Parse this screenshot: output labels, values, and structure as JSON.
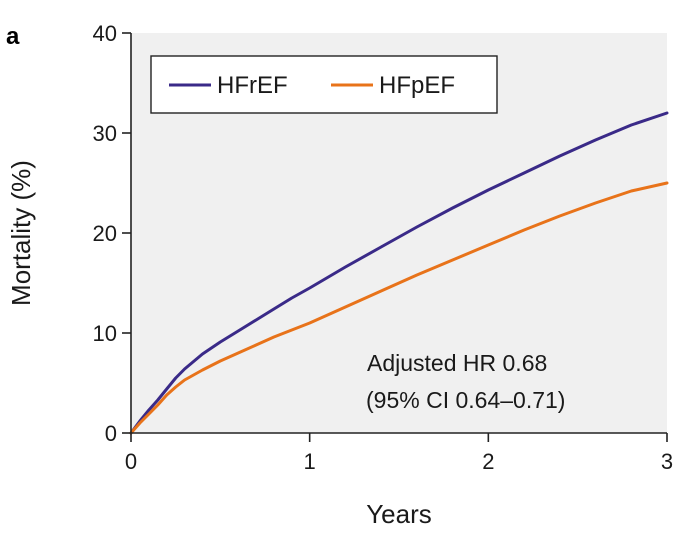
{
  "panel_label": "a",
  "chart_data": {
    "type": "line",
    "title": "",
    "xlabel": "Years",
    "ylabel": "Mortality (%)",
    "xlim": [
      0,
      3
    ],
    "ylim": [
      0,
      40
    ],
    "xticks": [
      0,
      1,
      2,
      3
    ],
    "yticks": [
      0,
      10,
      20,
      30,
      40
    ],
    "grid": false,
    "legend_position": "top-left",
    "annotation": [
      "Adjusted HR 0.68",
      "(95% CI 0.64–0.71)"
    ],
    "series": [
      {
        "name": "HFrEF",
        "color": "#3a2a88",
        "points": [
          [
            0,
            0
          ],
          [
            0.05,
            1.2
          ],
          [
            0.1,
            2.3
          ],
          [
            0.15,
            3.3
          ],
          [
            0.2,
            4.4
          ],
          [
            0.25,
            5.5
          ],
          [
            0.3,
            6.4
          ],
          [
            0.4,
            7.9
          ],
          [
            0.5,
            9.1
          ],
          [
            0.6,
            10.2
          ],
          [
            0.7,
            11.3
          ],
          [
            0.8,
            12.4
          ],
          [
            0.9,
            13.5
          ],
          [
            1.0,
            14.5
          ],
          [
            1.2,
            16.6
          ],
          [
            1.4,
            18.6
          ],
          [
            1.6,
            20.6
          ],
          [
            1.8,
            22.5
          ],
          [
            2.0,
            24.3
          ],
          [
            2.2,
            26.0
          ],
          [
            2.4,
            27.7
          ],
          [
            2.6,
            29.3
          ],
          [
            2.8,
            30.8
          ],
          [
            3.0,
            32.0
          ]
        ]
      },
      {
        "name": "HFpEF",
        "color": "#e8731a",
        "points": [
          [
            0,
            0
          ],
          [
            0.05,
            1.0
          ],
          [
            0.1,
            1.9
          ],
          [
            0.15,
            2.8
          ],
          [
            0.2,
            3.8
          ],
          [
            0.25,
            4.6
          ],
          [
            0.3,
            5.3
          ],
          [
            0.4,
            6.3
          ],
          [
            0.5,
            7.2
          ],
          [
            0.6,
            8.0
          ],
          [
            0.7,
            8.8
          ],
          [
            0.8,
            9.6
          ],
          [
            0.9,
            10.3
          ],
          [
            1.0,
            11.0
          ],
          [
            1.2,
            12.6
          ],
          [
            1.4,
            14.2
          ],
          [
            1.6,
            15.8
          ],
          [
            1.8,
            17.3
          ],
          [
            2.0,
            18.8
          ],
          [
            2.2,
            20.3
          ],
          [
            2.4,
            21.7
          ],
          [
            2.6,
            23.0
          ],
          [
            2.8,
            24.2
          ],
          [
            3.0,
            25.0
          ]
        ]
      }
    ]
  }
}
